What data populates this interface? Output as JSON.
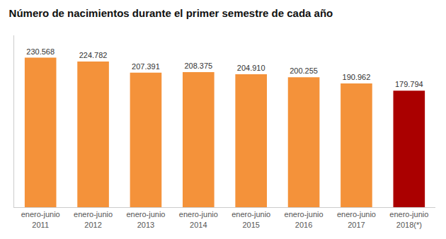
{
  "chart_data": {
    "type": "bar",
    "title": "Número de nacimientos durante el primer semestre de cada año",
    "categories": [
      "enero-junio\n2011",
      "enero-junio\n2012",
      "enero-junio\n2013",
      "enero-junio\n2014",
      "enero-junio\n2015",
      "enero-junio\n2016",
      "enero-junio\n2017",
      "enero-junio\n2018(*)"
    ],
    "values": [
      230568,
      224782,
      207391,
      208375,
      204910,
      200255,
      190962,
      179794
    ],
    "value_labels": [
      "230.568",
      "224.782",
      "207.391",
      "208.375",
      "204.910",
      "200.255",
      "190.962",
      "179.794"
    ],
    "colors": [
      "#F4923A",
      "#F4923A",
      "#F4923A",
      "#F4923A",
      "#F4923A",
      "#F4923A",
      "#F4923A",
      "#AA0000"
    ],
    "ylim": [
      0,
      265000
    ],
    "data_labels": true,
    "tick_labels": "x",
    "grid": false
  }
}
